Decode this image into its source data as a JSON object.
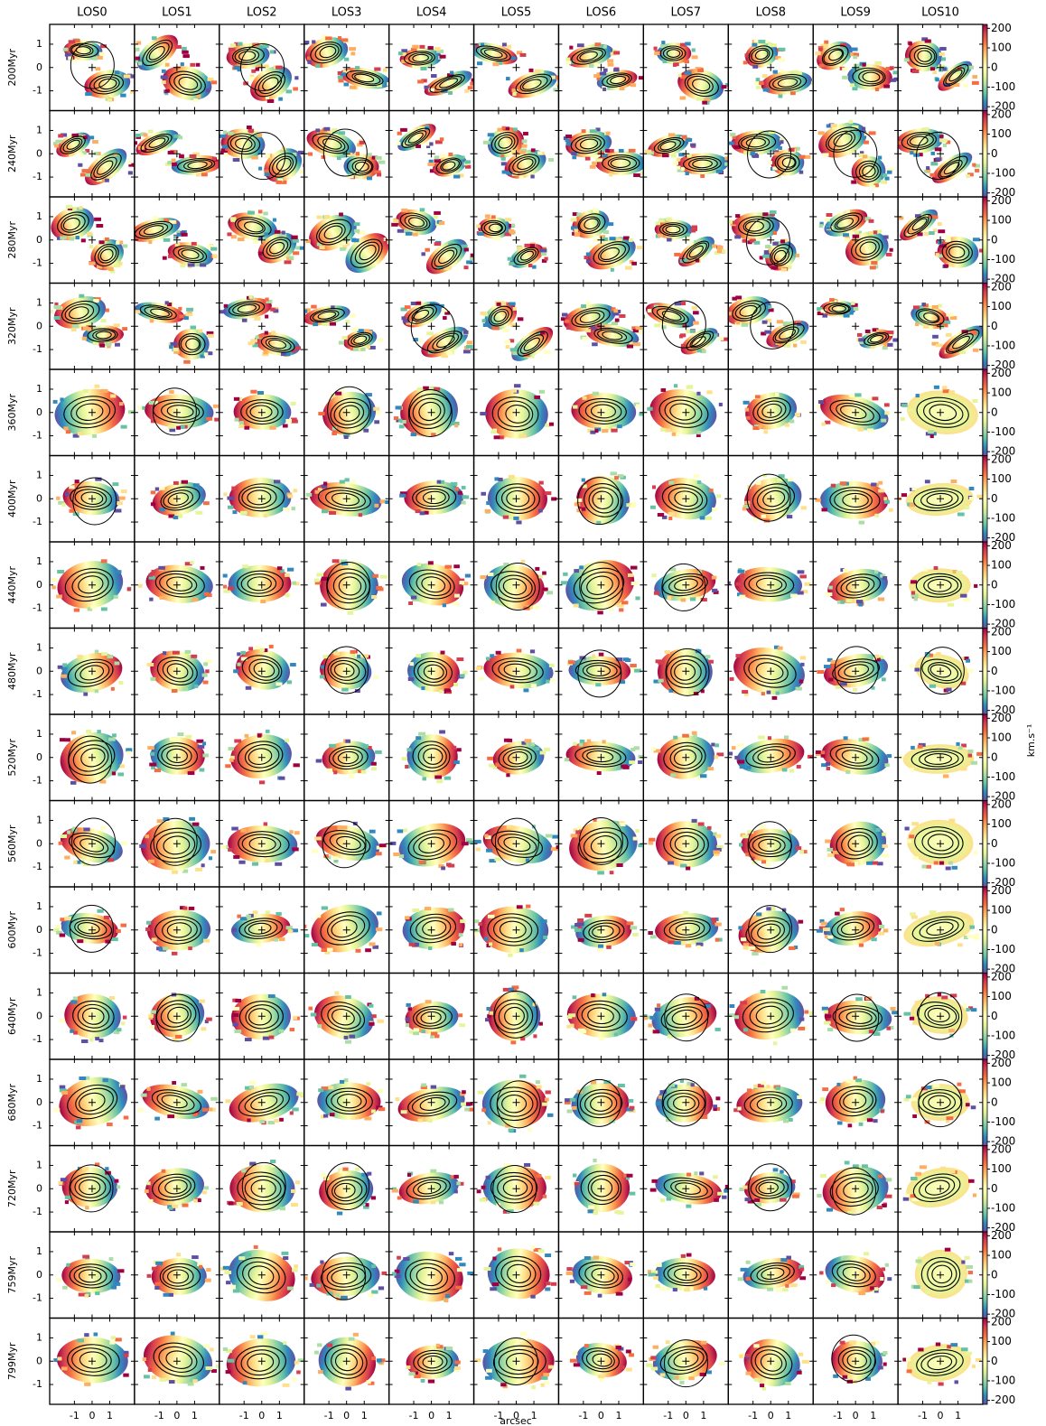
{
  "chart_data": {
    "type": "image-grid",
    "columns": [
      "LOS0",
      "LOS1",
      "LOS2",
      "LOS3",
      "LOS4",
      "LOS5",
      "LOS6",
      "LOS7",
      "LOS8",
      "LOS9",
      "LOS10"
    ],
    "rows": [
      "200Myr",
      "240Myr",
      "280Myr",
      "320Myr",
      "360Myr",
      "400Myr",
      "440Myr",
      "480Myr",
      "520Myr",
      "560Myr",
      "600Myr",
      "640Myr",
      "680Myr",
      "720Myr",
      "759Myr",
      "799Myr"
    ],
    "xlabel": "arcsec",
    "xlim": [
      -2.4,
      2.4
    ],
    "ylim": [
      -1.85,
      1.85
    ],
    "xticks": [
      -1,
      0,
      1
    ],
    "yticks": [
      -1,
      0,
      1
    ],
    "colorbar": {
      "label": "km.s⁻¹",
      "lim": [
        -220,
        220
      ],
      "ticks": [
        200,
        100,
        0,
        -100,
        -200
      ],
      "colormap": [
        "#5e4fa2",
        "#3288bd",
        "#66c2a5",
        "#abdda4",
        "#e6f598",
        "#ffffbf",
        "#fee08b",
        "#fdae61",
        "#f46d43",
        "#d53e4f",
        "#9e0142"
      ]
    }
  }
}
